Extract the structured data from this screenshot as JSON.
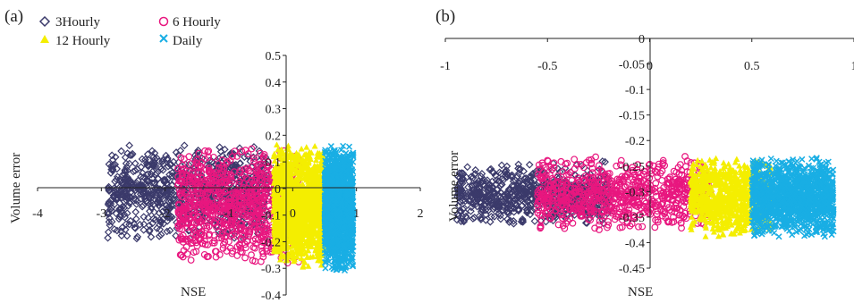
{
  "legend": {
    "entries": [
      {
        "label": "3Hourly",
        "marker": "diamond",
        "color": "#3b3a6b"
      },
      {
        "label": "6 Hourly",
        "marker": "circle",
        "color": "#e8177f"
      },
      {
        "label": "12 Hourly",
        "marker": "triangle",
        "color": "#f4ee00"
      },
      {
        "label": "Daily",
        "marker": "cross",
        "color": "#19aee4"
      }
    ]
  },
  "chart_data": [
    {
      "panel_label": "(a)",
      "type": "scatter",
      "xlabel": "NSE",
      "ylabel": "Volume error",
      "xlim": [
        -4,
        2
      ],
      "ylim": [
        -0.4,
        0.5
      ],
      "xticks": [
        "-4",
        "-3",
        "-2",
        "-1",
        "0",
        "1",
        "2"
      ],
      "yticks": [
        "0.5",
        "0.4",
        "0.3",
        "0.2",
        "0.1",
        "0",
        "-0.1",
        "-0.2",
        "-0.3",
        "-0.4"
      ],
      "series": [
        {
          "name": "3Hourly",
          "x_range": [
            -2.9,
            -0.4
          ],
          "y_range": [
            -0.2,
            0.17
          ],
          "count": 900
        },
        {
          "name": "6 Hourly",
          "x_range": [
            -1.8,
            0.1
          ],
          "y_range": [
            -0.3,
            0.17
          ],
          "count": 900
        },
        {
          "name": "12 Hourly",
          "x_range": [
            -0.3,
            0.5
          ],
          "y_range": [
            -0.3,
            0.17
          ],
          "count": 1500
        },
        {
          "name": "Daily",
          "x_range": [
            0.5,
            0.95
          ],
          "y_range": [
            -0.32,
            0.17
          ],
          "count": 1500
        }
      ]
    },
    {
      "panel_label": "(b)",
      "type": "scatter",
      "xlabel": "NSE",
      "ylabel": "Volume error",
      "xlim": [
        -1,
        1
      ],
      "ylim": [
        -0.45,
        0
      ],
      "xticks": [
        "-1",
        "-0.5",
        "0",
        "0.5",
        "1"
      ],
      "yticks": [
        "0",
        "-0.05",
        "-0.1",
        "-0.15",
        "-0.2",
        "-0.25",
        "-0.3",
        "-0.35",
        "-0.4",
        "-0.45"
      ],
      "series": [
        {
          "name": "3Hourly",
          "x_range": [
            -0.95,
            -0.2
          ],
          "y_range": [
            -0.37,
            -0.24
          ],
          "count": 700
        },
        {
          "name": "6 Hourly",
          "x_range": [
            -0.55,
            0.3
          ],
          "y_range": [
            -0.38,
            -0.23
          ],
          "count": 800
        },
        {
          "name": "12 Hourly",
          "x_range": [
            0.2,
            0.6
          ],
          "y_range": [
            -0.39,
            -0.23
          ],
          "count": 900
        },
        {
          "name": "Daily",
          "x_range": [
            0.5,
            0.9
          ],
          "y_range": [
            -0.39,
            -0.23
          ],
          "count": 1300
        }
      ]
    }
  ]
}
